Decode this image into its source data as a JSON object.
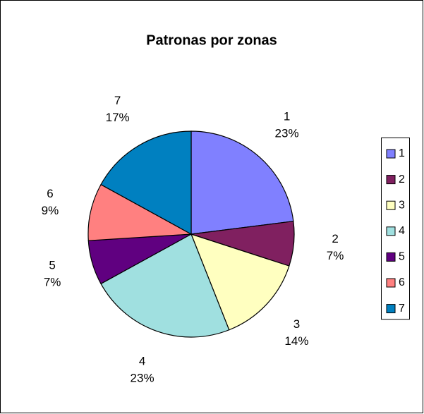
{
  "chart_data": {
    "type": "pie",
    "title": "Patronas por zonas",
    "categories": [
      "1",
      "2",
      "3",
      "4",
      "5",
      "6",
      "7"
    ],
    "values": [
      23,
      7,
      14,
      23,
      7,
      9,
      17
    ],
    "value_labels": [
      "23%",
      "7%",
      "14%",
      "23%",
      "7%",
      "9%",
      "17%"
    ],
    "colors": [
      "#8080ff",
      "#802060",
      "#ffffc0",
      "#a0e0e0",
      "#600080",
      "#ff8080",
      "#0080c0"
    ],
    "legend": "right"
  }
}
